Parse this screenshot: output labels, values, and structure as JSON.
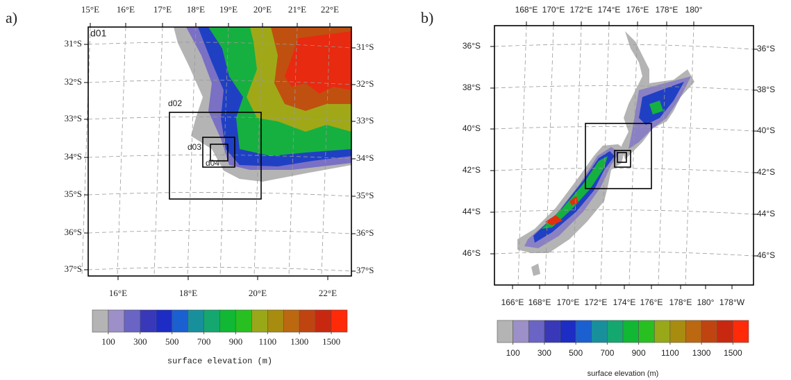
{
  "panels": [
    {
      "label": "a)",
      "domains": [
        "d01",
        "d02",
        "d03",
        "d04"
      ],
      "top_labels": [
        "15°E",
        "16°E",
        "17°E",
        "18°E",
        "19°E",
        "20°E",
        "21°E",
        "22°E"
      ],
      "bottom_labels": [
        "16°E",
        "18°E",
        "20°E",
        "22°E"
      ],
      "left_labels": [
        "31°S",
        "32°S",
        "33°S",
        "34°S",
        "35°S",
        "36°S",
        "37°S"
      ],
      "right_labels": [
        "31°S",
        "32°S",
        "33°S",
        "34°S",
        "35°S",
        "36°S",
        "37°S"
      ],
      "colorbar": {
        "colors": [
          "#b4b4b4",
          "#9d90c8",
          "#6a64c4",
          "#3838b8",
          "#1c2cc4",
          "#1a60d0",
          "#18909c",
          "#14a870",
          "#10b834",
          "#28c020",
          "#98a818",
          "#a88c10",
          "#bc6810",
          "#c04410",
          "#c82810",
          "#ff2a08"
        ],
        "labels": [
          100,
          300,
          500,
          700,
          900,
          1100,
          1300,
          1500
        ],
        "title": "surface elevation (m)"
      }
    },
    {
      "label": "b)",
      "top_labels": [
        "168°E",
        "170°E",
        "172°E",
        "174°E",
        "176°E",
        "178°E",
        "180°"
      ],
      "bottom_labels": [
        "166°E",
        "168°E",
        "170°E",
        "172°E",
        "174°E",
        "176°E",
        "178°E",
        "180°",
        "178°W"
      ],
      "left_labels": [
        "36°S",
        "38°S",
        "40°S",
        "42°S",
        "44°S",
        "46°S"
      ],
      "right_labels": [
        "36°S",
        "38°S",
        "40°S",
        "42°S",
        "44°S",
        "46°S"
      ],
      "colorbar": {
        "colors": [
          "#b4b4b4",
          "#9d90c8",
          "#6a64c4",
          "#3838b8",
          "#1c2cc4",
          "#1a60d0",
          "#18909c",
          "#14a870",
          "#10b834",
          "#28c020",
          "#98a818",
          "#a88c10",
          "#bc6810",
          "#c04410",
          "#c82810",
          "#ff2a08"
        ],
        "labels": [
          100,
          300,
          500,
          700,
          900,
          1100,
          1300,
          1500
        ],
        "title": "surface elevation (m)"
      }
    }
  ]
}
